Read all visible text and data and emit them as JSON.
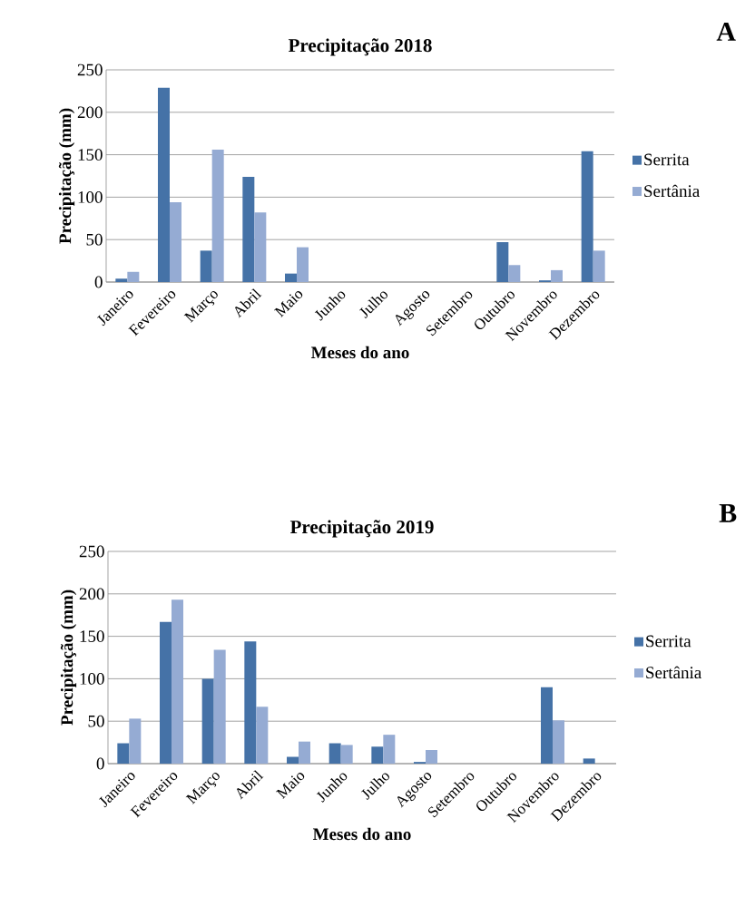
{
  "chart_data": [
    {
      "type": "bar",
      "title": "Precipitação 2018",
      "xlabel": "Meses do ano",
      "ylabel": "Precipitação  (mm)",
      "annotations": [
        "A"
      ],
      "categories": [
        "Janeiro",
        "Fevereiro",
        "Março",
        "Abril",
        "Maio",
        "Junho",
        "Julho",
        "Agosto",
        "Setembro",
        "Outubro",
        "Novembro",
        "Dezembro"
      ],
      "series": [
        {
          "name": "Serrita",
          "color": "#4572a7",
          "values": [
            4,
            229,
            37,
            124,
            10,
            0,
            0,
            0,
            0,
            47,
            2,
            154
          ]
        },
        {
          "name": "Sertânia",
          "color": "#95abd3",
          "values": [
            12,
            94,
            156,
            82,
            41,
            0,
            0,
            0,
            0,
            20,
            14,
            37
          ]
        }
      ],
      "ylim": [
        0,
        250
      ],
      "yticks": [
        0,
        50,
        100,
        150,
        200,
        250
      ],
      "grid": "y",
      "legend": "right"
    },
    {
      "type": "bar",
      "title": "Precipitação 2019",
      "xlabel": "Meses do ano",
      "ylabel": "Precipitação  (mm)",
      "annotations": [
        "B"
      ],
      "categories": [
        "Janeiro",
        "Fevereiro",
        "Março",
        "Abril",
        "Maio",
        "Junho",
        "Julho",
        "Agosto",
        "Setembro",
        "Outubro",
        "Novembro",
        "Dezembro"
      ],
      "series": [
        {
          "name": "Serrita",
          "color": "#4572a7",
          "values": [
            24,
            167,
            100,
            144,
            8,
            24,
            20,
            2,
            0,
            0,
            90,
            6
          ]
        },
        {
          "name": "Sertânia",
          "color": "#95abd3",
          "values": [
            53,
            193,
            134,
            67,
            26,
            22,
            34,
            16,
            0,
            0,
            51,
            0
          ]
        }
      ],
      "ylim": [
        0,
        250
      ],
      "yticks": [
        0,
        50,
        100,
        150,
        200,
        250
      ],
      "grid": "y",
      "legend": "right"
    }
  ]
}
